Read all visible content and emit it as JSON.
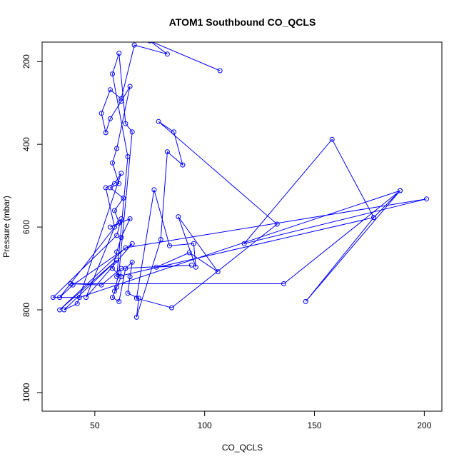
{
  "chart_data": {
    "type": "line",
    "title": "ATOM1 Southbound CO_QCLS",
    "xlabel": "CO_QCLS",
    "ylabel": "Pressure (mbar)",
    "xlim": [
      26,
      208
    ],
    "ylim": [
      1045,
      153
    ],
    "y_reversed": true,
    "xticks": [
      50,
      100,
      150,
      200
    ],
    "xtick_labels": [
      "50",
      "100",
      "150",
      "200"
    ],
    "yticks": [
      200,
      400,
      600,
      800,
      1000
    ],
    "ytick_labels": [
      "200",
      "400",
      "600",
      "800",
      "1000"
    ],
    "grid": false,
    "legend": "none",
    "series_color": "#0000ff",
    "marker": "open-circle",
    "series": [
      {
        "values": [
          [
            107,
            222
          ],
          [
            75,
            150
          ],
          [
            83,
            182
          ],
          [
            68,
            160
          ],
          [
            62,
            290
          ],
          [
            57,
            268
          ],
          [
            53,
            325
          ],
          [
            55,
            372
          ],
          [
            57,
            338
          ],
          [
            62,
            296
          ],
          [
            66,
            260
          ],
          [
            60,
            410
          ],
          [
            58,
            445
          ],
          [
            61,
            495
          ],
          [
            57,
            505
          ],
          [
            63,
            530
          ],
          [
            59,
            560
          ],
          [
            61,
            590
          ],
          [
            57,
            600
          ],
          [
            66,
            580
          ],
          [
            62,
            625
          ],
          [
            60,
            660
          ],
          [
            58,
            700
          ],
          [
            62,
            720
          ],
          [
            60,
            745
          ],
          [
            58,
            770
          ],
          [
            61,
            780
          ],
          [
            64,
            700
          ],
          [
            67,
            685
          ],
          [
            66,
            720
          ],
          [
            65,
            760
          ],
          [
            70,
            772
          ],
          [
            69,
            818
          ],
          [
            80,
            630
          ],
          [
            83,
            418
          ],
          [
            90,
            450
          ],
          [
            86,
            370
          ],
          [
            79,
            345
          ],
          [
            133,
            593
          ],
          [
            85,
            795
          ],
          [
            69,
            772
          ],
          [
            77,
            510
          ],
          [
            84,
            645
          ],
          [
            95,
            640
          ],
          [
            96,
            697
          ],
          [
            88,
            575
          ],
          [
            106,
            708
          ],
          [
            93,
            662
          ],
          [
            78,
            697
          ],
          [
            94,
            692
          ],
          [
            62,
            700
          ],
          [
            53,
            740
          ],
          [
            39,
            737
          ],
          [
            136,
            737
          ],
          [
            189,
            512
          ],
          [
            43,
            770
          ],
          [
            31,
            770
          ],
          [
            60,
            620
          ],
          [
            62,
            580
          ],
          [
            34,
            770
          ],
          [
            40,
            740
          ],
          [
            67,
            640
          ],
          [
            46,
            770
          ],
          [
            59,
            600
          ],
          [
            55,
            505
          ],
          [
            59,
            495
          ],
          [
            62,
            470
          ],
          [
            42,
            785
          ],
          [
            36,
            800
          ],
          [
            60,
            680
          ],
          [
            34,
            800
          ],
          [
            64,
            650
          ],
          [
            201,
            532
          ],
          [
            118,
            640
          ],
          [
            158,
            388
          ],
          [
            177,
            577
          ],
          [
            146,
            780
          ],
          [
            189,
            512
          ],
          [
            177,
            577
          ],
          [
            60,
            720
          ],
          [
            65,
            430
          ],
          [
            58,
            230
          ],
          [
            61,
            180
          ],
          [
            64,
            350
          ],
          [
            67,
            370
          ],
          [
            61,
            710
          ],
          [
            59,
            755
          ]
        ]
      }
    ]
  }
}
